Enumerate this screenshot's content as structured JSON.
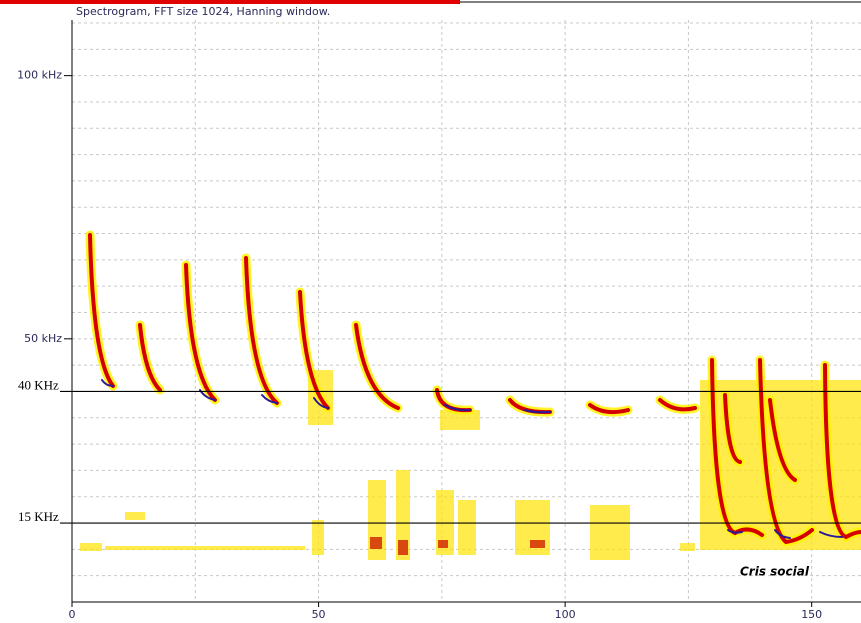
{
  "chart_data": {
    "type": "spectrogram",
    "title": "Spectrogram, FFT size 1024, Hanning window.",
    "xlim": [
      0,
      160
    ],
    "xticks": [
      0,
      50,
      100,
      150
    ],
    "ylim": [
      0,
      110
    ],
    "yticks": [
      {
        "value": 100,
        "label": "100 kHz"
      },
      {
        "value": 50,
        "label": "50 kHz"
      }
    ],
    "grid": true,
    "xgrid_step": 25,
    "ygrid_step": 5,
    "reference_lines": [
      {
        "value": 40,
        "label": "40 KHz"
      },
      {
        "value": 15,
        "label": "15 KHz"
      }
    ],
    "annotations": [
      "Cris social"
    ]
  }
}
